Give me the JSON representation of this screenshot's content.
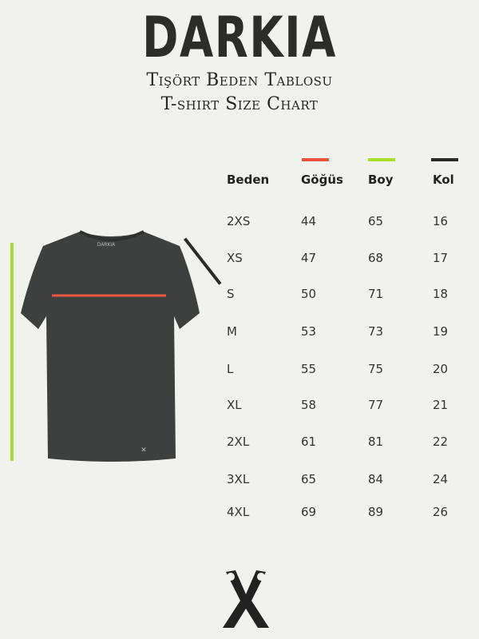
{
  "brand": "DARKIA",
  "title_tr": "Tişört Beden Tablosu",
  "title_en": "T-shirt Size Chart",
  "shirt_label": "DARKIA",
  "colors": {
    "chest": "#e9553f",
    "length": "#a6e02c",
    "sleeve": "#2a2a2a",
    "shirt": "#3e3f3f"
  },
  "table": {
    "headers": [
      "Beden",
      "Göğüs",
      "Boy",
      "Kol"
    ],
    "rows": [
      [
        "2XS",
        "44",
        "65",
        "16"
      ],
      [
        "XS",
        "47",
        "68",
        "17"
      ],
      [
        "S",
        "50",
        "71",
        "18"
      ],
      [
        "M",
        "53",
        "73",
        "19"
      ],
      [
        "L",
        "55",
        "75",
        "20"
      ],
      [
        "XL",
        "58",
        "77",
        "21"
      ],
      [
        "2XL",
        "61",
        "81",
        "22"
      ],
      [
        "3XL",
        "65",
        "84",
        "24"
      ],
      [
        "4XL",
        "69",
        "89",
        "26"
      ]
    ]
  }
}
